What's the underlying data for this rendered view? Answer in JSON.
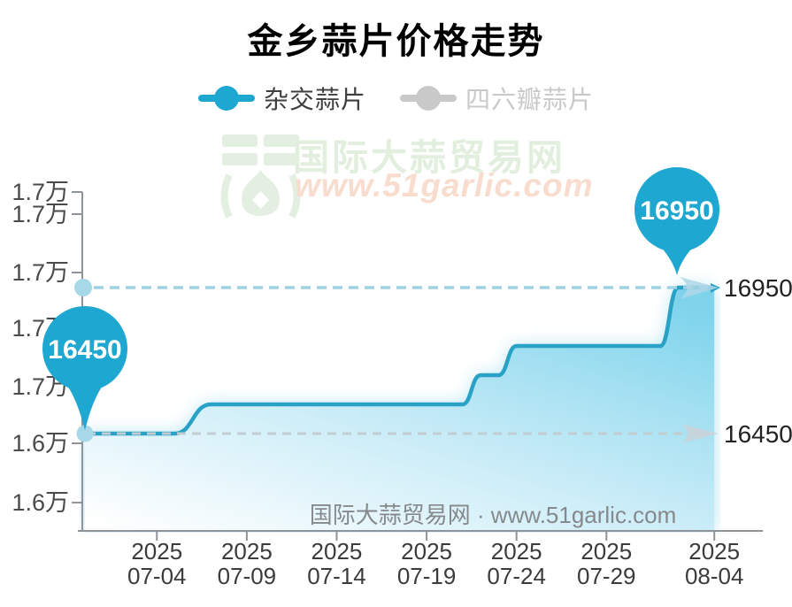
{
  "title": "金乡蒜片价格走势",
  "legend": {
    "items": [
      {
        "label": "杂交蒜片",
        "color": "#1ea7d0",
        "selected": true
      },
      {
        "label": "四六瓣蒜片",
        "color": "#c9c9c9",
        "selected": false
      }
    ]
  },
  "watermark": {
    "brand": "国际大蒜贸易网",
    "url": "www.51garlic.com",
    "footer": "国际大蒜贸易网 · www.51garlic.com"
  },
  "chart_data": {
    "type": "line",
    "title": "金乡蒜片价格走势",
    "legend_position": "top",
    "grid": false,
    "x_axis": {
      "tick_labels": [
        [
          "2025",
          "07-04"
        ],
        [
          "2025",
          "07-09"
        ],
        [
          "2025",
          "07-14"
        ],
        [
          "2025",
          "07-19"
        ],
        [
          "2025",
          "07-24"
        ],
        [
          "2025",
          "07-29"
        ],
        [
          "2025",
          "08-04"
        ]
      ]
    },
    "y_axis": {
      "tick_labels": [
        "1.7万",
        "1.7万",
        "1.7万",
        "1.7万",
        "1.7万",
        "1.6万",
        "1.6万"
      ],
      "approx_value_range": [
        16100,
        17250
      ]
    },
    "series": [
      {
        "name": "杂交蒜片",
        "color": "#1ea7d0",
        "visible": true,
        "points": [
          [
            "2025-06-30",
            16450
          ],
          [
            "2025-07-05",
            16450
          ],
          [
            "2025-07-07",
            16550
          ],
          [
            "2025-07-21",
            16550
          ],
          [
            "2025-07-22",
            16650
          ],
          [
            "2025-07-23",
            16650
          ],
          [
            "2025-07-24",
            16750
          ],
          [
            "2025-08-01",
            16750
          ],
          [
            "2025-08-02",
            16950
          ],
          [
            "2025-08-04",
            16950
          ]
        ]
      },
      {
        "name": "四六瓣蒜片",
        "color": "#c9c9c9",
        "visible": false,
        "points": []
      }
    ],
    "markers": [
      {
        "label": "16450",
        "value": 16450,
        "position": "series-start"
      },
      {
        "label": "16950",
        "value": 16950,
        "position": "series-end"
      }
    ]
  },
  "colors": {
    "series_line": "#2aa2c5",
    "balloon": "#1ea7d0",
    "area_top": "#7fd4ec",
    "dashed_high": "#9fd2e2",
    "dashed_low": "#c2cdd2",
    "axis": "#8e9499",
    "watermark_green": "#e2efde",
    "watermark_pink": "#f8dccd"
  }
}
